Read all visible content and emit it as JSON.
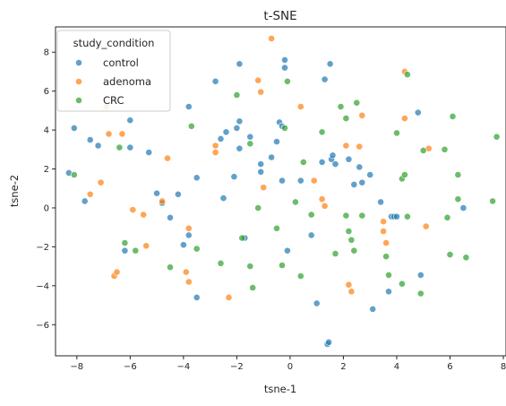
{
  "chart_data": {
    "type": "scatter",
    "title": "t-SNE",
    "xlabel": "tsne-1",
    "ylabel": "tsne-2",
    "xlim": [
      -8.8,
      8.1
    ],
    "ylim": [
      -7.6,
      9.3
    ],
    "xticks": [
      -8,
      -6,
      -4,
      -2,
      0,
      2,
      4,
      6,
      8
    ],
    "yticks": [
      -6,
      -4,
      -2,
      0,
      2,
      4,
      6,
      8
    ],
    "grid": false,
    "legend": {
      "title": "study_condition",
      "placement": "top-left"
    },
    "series": [
      {
        "name": "control",
        "color": "#1f77b4",
        "points": [
          [
            -8.3,
            1.8
          ],
          [
            -8.1,
            4.1
          ],
          [
            -7.7,
            0.35
          ],
          [
            -7.5,
            3.5
          ],
          [
            -7.2,
            3.2
          ],
          [
            -6.2,
            -2.2
          ],
          [
            -6.0,
            4.5
          ],
          [
            -6.0,
            3.1
          ],
          [
            -5.3,
            2.85
          ],
          [
            -5.0,
            0.75
          ],
          [
            -4.8,
            0.25
          ],
          [
            -4.5,
            -0.5
          ],
          [
            -4.2,
            0.7
          ],
          [
            -4.0,
            -1.9
          ],
          [
            -3.8,
            5.2
          ],
          [
            -3.8,
            -1.4
          ],
          [
            -3.5,
            -4.6
          ],
          [
            -3.5,
            1.55
          ],
          [
            -2.8,
            6.5
          ],
          [
            -2.6,
            3.55
          ],
          [
            -2.5,
            0.5
          ],
          [
            -2.4,
            3.9
          ],
          [
            -2.1,
            1.6
          ],
          [
            -2.0,
            4.1
          ],
          [
            -1.9,
            7.4
          ],
          [
            -1.9,
            4.45
          ],
          [
            -1.9,
            3.05
          ],
          [
            -1.7,
            -1.55
          ],
          [
            -1.5,
            3.65
          ],
          [
            -1.1,
            2.25
          ],
          [
            -1.1,
            1.85
          ],
          [
            -0.7,
            2.6
          ],
          [
            -0.5,
            3.4
          ],
          [
            -0.4,
            4.4
          ],
          [
            -0.3,
            4.2
          ],
          [
            -0.3,
            1.4
          ],
          [
            -0.2,
            7.6
          ],
          [
            -0.2,
            7.2
          ],
          [
            -0.1,
            -2.2
          ],
          [
            0.4,
            1.4
          ],
          [
            0.8,
            -1.4
          ],
          [
            1.0,
            -4.9
          ],
          [
            1.2,
            2.35
          ],
          [
            1.3,
            6.6
          ],
          [
            1.4,
            -7.0
          ],
          [
            1.45,
            -6.9
          ],
          [
            1.5,
            7.4
          ],
          [
            1.55,
            2.5
          ],
          [
            1.6,
            2.7
          ],
          [
            1.7,
            2.25
          ],
          [
            2.2,
            2.5
          ],
          [
            2.4,
            1.2
          ],
          [
            2.6,
            2.1
          ],
          [
            2.7,
            1.3
          ],
          [
            3.0,
            1.7
          ],
          [
            3.1,
            -5.2
          ],
          [
            3.4,
            0.3
          ],
          [
            3.7,
            -4.3
          ],
          [
            3.8,
            -0.45
          ],
          [
            3.9,
            -0.45
          ],
          [
            4.0,
            -0.45
          ],
          [
            4.8,
            4.9
          ],
          [
            4.9,
            -3.45
          ],
          [
            6.5,
            0.0
          ]
        ]
      },
      {
        "name": "adenoma",
        "color": "#ff7f0e",
        "points": [
          [
            -7.5,
            0.7
          ],
          [
            -7.1,
            1.3
          ],
          [
            -6.9,
            5.2
          ],
          [
            -6.8,
            3.8
          ],
          [
            -6.6,
            -3.5
          ],
          [
            -6.5,
            -3.3
          ],
          [
            -6.3,
            3.8
          ],
          [
            -5.9,
            -0.1
          ],
          [
            -5.5,
            -0.35
          ],
          [
            -5.4,
            -1.95
          ],
          [
            -4.8,
            0.35
          ],
          [
            -4.6,
            2.55
          ],
          [
            -3.9,
            -3.3
          ],
          [
            -3.8,
            -1.05
          ],
          [
            -3.8,
            -3.8
          ],
          [
            -2.8,
            2.85
          ],
          [
            -2.8,
            3.2
          ],
          [
            -2.3,
            -4.6
          ],
          [
            -1.2,
            6.55
          ],
          [
            -1.1,
            5.95
          ],
          [
            -1.0,
            1.05
          ],
          [
            -0.7,
            8.7
          ],
          [
            0.4,
            5.2
          ],
          [
            0.9,
            1.4
          ],
          [
            1.2,
            0.45
          ],
          [
            1.3,
            0.1
          ],
          [
            2.1,
            3.2
          ],
          [
            2.2,
            -3.95
          ],
          [
            2.3,
            -4.3
          ],
          [
            2.6,
            3.15
          ],
          [
            2.7,
            4.75
          ],
          [
            3.5,
            -0.7
          ],
          [
            3.5,
            -1.2
          ],
          [
            3.6,
            -1.8
          ],
          [
            4.3,
            7.0
          ],
          [
            4.3,
            4.6
          ],
          [
            5.1,
            -0.95
          ],
          [
            5.2,
            3.05
          ]
        ]
      },
      {
        "name": "CRC",
        "color": "#2ca02c",
        "points": [
          [
            -8.1,
            1.7
          ],
          [
            -6.4,
            3.1
          ],
          [
            -6.2,
            -1.8
          ],
          [
            -5.8,
            -2.2
          ],
          [
            -4.5,
            -3.05
          ],
          [
            -3.7,
            4.2
          ],
          [
            -3.5,
            -2.1
          ],
          [
            -2.6,
            -2.85
          ],
          [
            -2.0,
            5.8
          ],
          [
            -1.8,
            -1.55
          ],
          [
            -1.5,
            3.3
          ],
          [
            -1.5,
            -3.0
          ],
          [
            -1.4,
            -4.1
          ],
          [
            -1.2,
            0.0
          ],
          [
            -0.5,
            -1.05
          ],
          [
            -0.3,
            -2.95
          ],
          [
            -0.2,
            4.1
          ],
          [
            -0.1,
            6.5
          ],
          [
            0.2,
            0.3
          ],
          [
            0.4,
            -3.5
          ],
          [
            0.5,
            2.35
          ],
          [
            0.8,
            -0.35
          ],
          [
            1.2,
            3.9
          ],
          [
            1.7,
            -2.35
          ],
          [
            1.9,
            5.2
          ],
          [
            2.1,
            4.6
          ],
          [
            2.1,
            -0.4
          ],
          [
            2.2,
            -1.2
          ],
          [
            2.3,
            -1.65
          ],
          [
            2.4,
            -2.2
          ],
          [
            2.5,
            5.4
          ],
          [
            2.7,
            -0.4
          ],
          [
            3.6,
            -2.5
          ],
          [
            3.7,
            -3.45
          ],
          [
            4.0,
            3.85
          ],
          [
            4.2,
            1.5
          ],
          [
            4.2,
            -3.9
          ],
          [
            4.3,
            1.7
          ],
          [
            4.4,
            6.85
          ],
          [
            4.4,
            -0.45
          ],
          [
            4.9,
            -4.4
          ],
          [
            5.0,
            2.95
          ],
          [
            5.8,
            3.0
          ],
          [
            5.9,
            -0.5
          ],
          [
            6.0,
            -2.4
          ],
          [
            6.1,
            4.7
          ],
          [
            6.3,
            0.45
          ],
          [
            6.3,
            1.7
          ],
          [
            6.6,
            -2.55
          ],
          [
            7.6,
            0.35
          ],
          [
            7.75,
            3.65
          ]
        ]
      }
    ]
  }
}
